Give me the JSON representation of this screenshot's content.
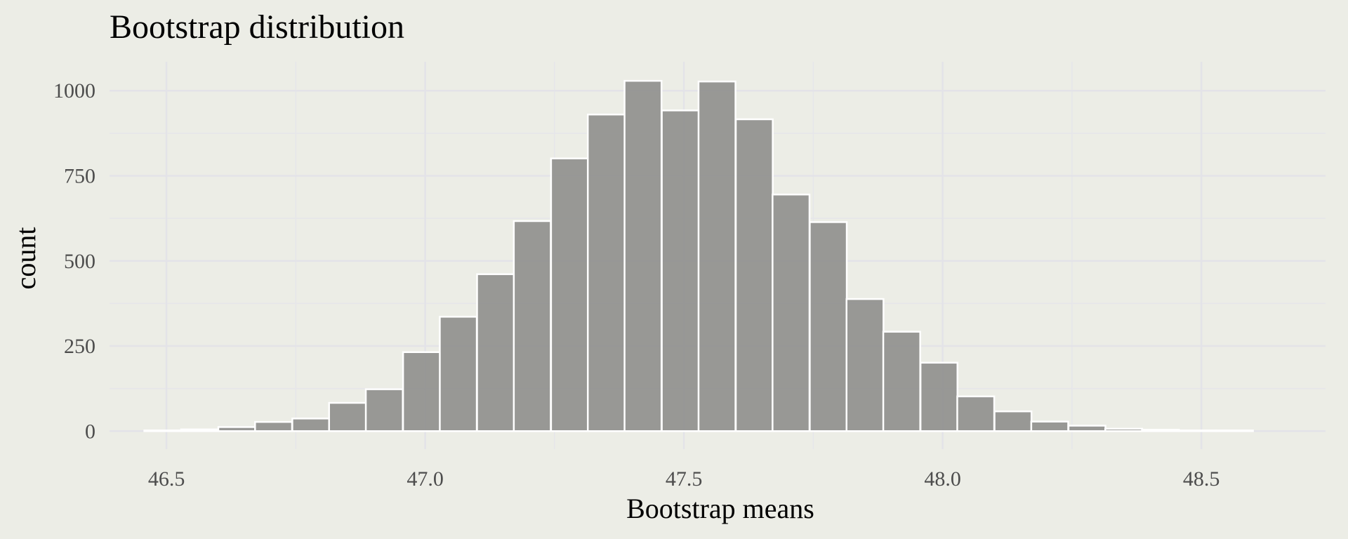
{
  "chart_data": {
    "type": "bar",
    "title": "Bootstrap distribution",
    "xlabel": "Bootstrap means",
    "ylabel": "count",
    "xlim": [
      46.39,
      48.74
    ],
    "ylim": [
      -53,
      1085
    ],
    "x_ticks": [
      "46.5",
      "47.0",
      "47.5",
      "48.0",
      "48.5"
    ],
    "y_ticks": [
      "0",
      "250",
      "500",
      "750",
      "1000"
    ],
    "x_tick_values": [
      46.5,
      47.0,
      47.5,
      48.0,
      48.5
    ],
    "y_tick_values": [
      0,
      250,
      500,
      750,
      1000
    ],
    "bin_width": 0.0714,
    "bin_centers": [
      46.493,
      46.564,
      46.636,
      46.707,
      46.779,
      46.85,
      46.921,
      46.993,
      47.064,
      47.136,
      47.207,
      47.279,
      47.35,
      47.421,
      47.493,
      47.564,
      47.636,
      47.707,
      47.779,
      47.85,
      47.921,
      47.993,
      48.064,
      48.136,
      48.207,
      48.279,
      48.35,
      48.421,
      48.493,
      48.564
    ],
    "values": [
      2,
      5,
      12,
      27,
      37,
      83,
      123,
      232,
      336,
      461,
      617,
      801,
      930,
      1029,
      942,
      1027,
      916,
      695,
      614,
      388,
      292,
      201,
      102,
      58,
      28,
      16,
      7,
      4,
      2,
      2
    ],
    "grid": true,
    "legend": "none",
    "colors": {
      "background": "#ecede6",
      "bar_fill": "#8c8c8a",
      "bar_stroke": "#ffffff",
      "grid": "#e3e3e8"
    }
  }
}
